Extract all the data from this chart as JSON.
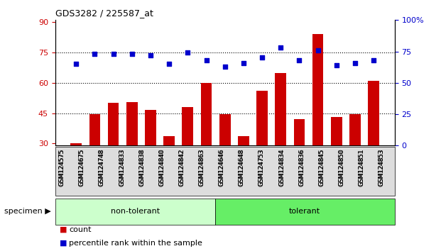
{
  "title": "GDS3282 / 225587_at",
  "categories": [
    "GSM124575",
    "GSM124675",
    "GSM124748",
    "GSM124833",
    "GSM124838",
    "GSM124840",
    "GSM124842",
    "GSM124863",
    "GSM124646",
    "GSM124648",
    "GSM124753",
    "GSM124834",
    "GSM124836",
    "GSM124845",
    "GSM124850",
    "GSM124851",
    "GSM124853"
  ],
  "counts": [
    30.0,
    44.5,
    50.0,
    50.5,
    46.5,
    33.5,
    48.0,
    60.0,
    44.5,
    33.5,
    56.0,
    65.0,
    42.0,
    84.0,
    43.0,
    44.5,
    61.0
  ],
  "percentile": [
    65,
    73,
    73,
    73,
    72,
    65,
    74,
    68,
    63,
    66,
    70,
    78,
    68,
    76,
    64,
    66,
    68
  ],
  "non_tolerant_count": 8,
  "tolerant_count": 9,
  "non_tolerant_color": "#ccffcc",
  "tolerant_color": "#66ee66",
  "bar_color": "#cc0000",
  "dot_color": "#0000cc",
  "ylim_left": [
    29,
    91
  ],
  "ylim_right": [
    0,
    100
  ],
  "yticks_left": [
    30,
    45,
    60,
    75,
    90
  ],
  "yticks_right": [
    0,
    25,
    50,
    75,
    100
  ],
  "ytick_labels_right": [
    "0",
    "25",
    "50",
    "75",
    "100%"
  ],
  "hlines": [
    45,
    60,
    75
  ],
  "specimen_label": "specimen",
  "non_tolerant_label": "non-tolerant",
  "tolerant_label": "tolerant",
  "legend_count": "count",
  "legend_percentile": "percentile rank within the sample",
  "background_color": "#ffffff",
  "tick_color_left": "#cc0000",
  "tick_color_right": "#0000cc"
}
